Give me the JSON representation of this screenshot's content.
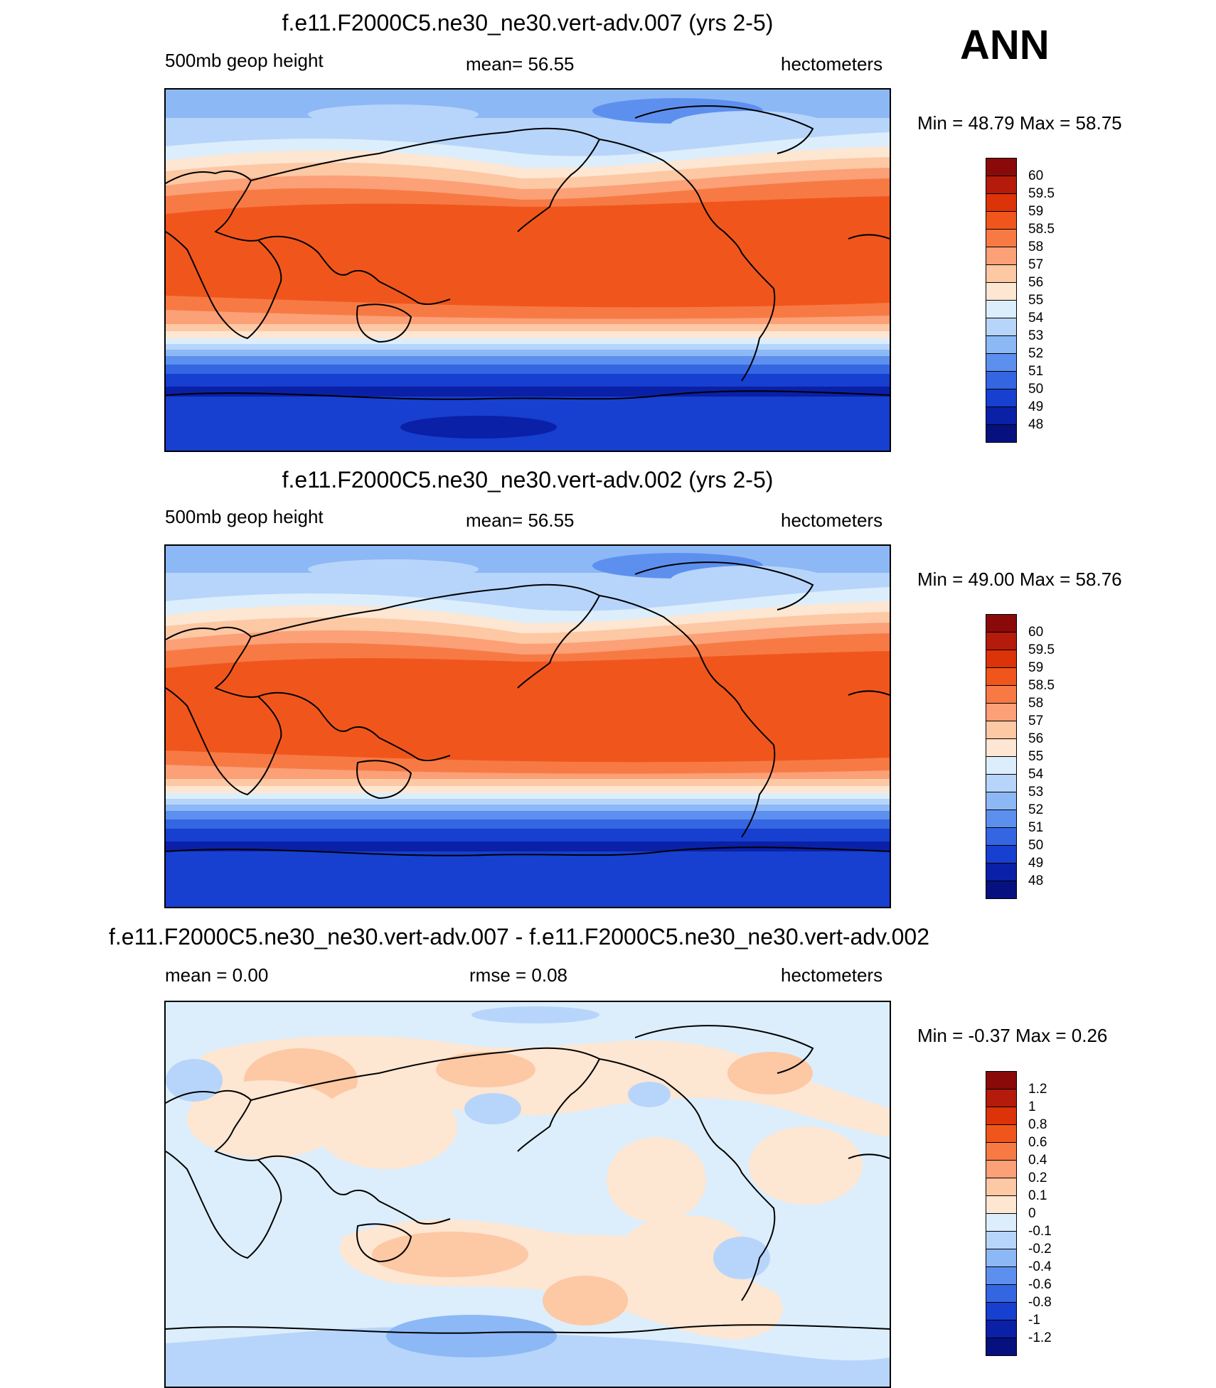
{
  "season": "ANN",
  "panels": [
    {
      "id": "top",
      "title": "f.e11.F2000C5.ne30_ne30.vert-adv.007 (yrs 2-5)",
      "variable": "500mb geop height",
      "stat": "mean=  56.55",
      "units": "hectometers",
      "minmax": "Min =  48.79 Max =  58.75",
      "colorbar": {
        "labels": [
          "60",
          "59.5",
          "59",
          "58.5",
          "58",
          "57",
          "56",
          "55",
          "54",
          "53",
          "52",
          "51",
          "50",
          "49",
          "48"
        ],
        "colors": [
          "#8a0a0a",
          "#b51b0a",
          "#dd3308",
          "#f0561c",
          "#f77a45",
          "#fba077",
          "#fdc8a4",
          "#fde6d2",
          "#dceefc",
          "#b7d5fa",
          "#8db8f6",
          "#5d90ee",
          "#3566e2",
          "#173fd0",
          "#0a20a6",
          "#06117f"
        ]
      }
    },
    {
      "id": "middle",
      "title": "f.e11.F2000C5.ne30_ne30.vert-adv.002 (yrs 2-5)",
      "variable": "500mb geop height",
      "stat": "mean=  56.55",
      "units": "hectometers",
      "minmax": "Min =  49.00 Max =  58.76",
      "colorbar": {
        "labels": [
          "60",
          "59.5",
          "59",
          "58.5",
          "58",
          "57",
          "56",
          "55",
          "54",
          "53",
          "52",
          "51",
          "50",
          "49",
          "48"
        ],
        "colors": [
          "#8a0a0a",
          "#b51b0a",
          "#dd3308",
          "#f0561c",
          "#f77a45",
          "#fba077",
          "#fdc8a4",
          "#fde6d2",
          "#dceefc",
          "#b7d5fa",
          "#8db8f6",
          "#5d90ee",
          "#3566e2",
          "#173fd0",
          "#0a20a6",
          "#06117f"
        ]
      }
    },
    {
      "id": "bottom",
      "title": "f.e11.F2000C5.ne30_ne30.vert-adv.007 - f.e11.F2000C5.ne30_ne30.vert-adv.002",
      "variable": "mean =   0.00",
      "stat": "rmse =   0.08",
      "units": "hectometers",
      "minmax": "Min =  -0.37 Max =   0.26",
      "colorbar": {
        "labels": [
          "1.2",
          "1",
          "0.8",
          "0.6",
          "0.4",
          "0.2",
          "0.1",
          "0",
          "-0.1",
          "-0.2",
          "-0.4",
          "-0.6",
          "-0.8",
          "-1",
          "-1.2"
        ],
        "colors": [
          "#8a0a0a",
          "#b51b0a",
          "#dd3308",
          "#f0561c",
          "#f77a45",
          "#fba077",
          "#fdc8a4",
          "#fde6d2",
          "#dceefc",
          "#b7d5fa",
          "#8db8f6",
          "#5d90ee",
          "#3566e2",
          "#173fd0",
          "#0a20a6",
          "#06117f"
        ]
      }
    }
  ]
}
